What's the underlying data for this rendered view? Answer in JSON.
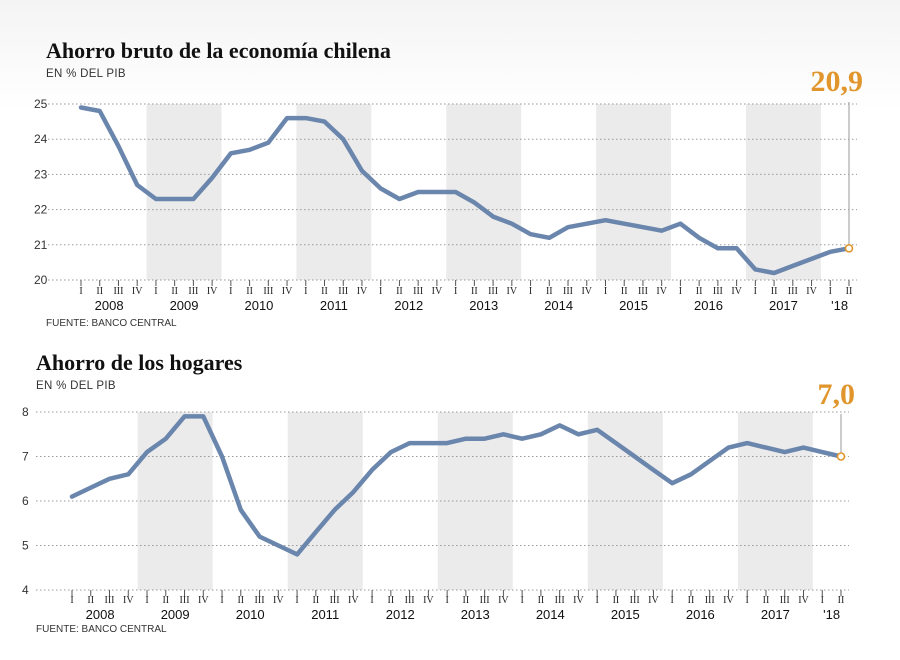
{
  "colors": {
    "line": "#6b86ad",
    "band": "#ebebeb",
    "grid": "#9a9a9a",
    "accent": "#e0962c"
  },
  "chart_data": [
    {
      "type": "line",
      "title": "Ahorro bruto de la economía chilena",
      "subtitle": "EN % DEL PIB",
      "source": "FUENTE: BANCO CENTRAL",
      "highlight": "20,9",
      "ylim": [
        20,
        25
      ],
      "yticks": [
        "20",
        "21",
        "22",
        "23",
        "24",
        "25"
      ],
      "grid": true,
      "quarters": [
        "I",
        "II",
        "III",
        "IV",
        "I",
        "II",
        "III",
        "IV",
        "I",
        "II",
        "III",
        "IV",
        "I",
        "II",
        "III",
        "IV",
        "I",
        "II",
        "III",
        "IV",
        "I",
        "II",
        "III",
        "IV",
        "I",
        "II",
        "III",
        "IV",
        "I",
        "II",
        "III",
        "IV",
        "I",
        "II",
        "III",
        "IV",
        "I",
        "II",
        "III",
        "IV",
        "I",
        "II"
      ],
      "years": [
        "2008",
        "2009",
        "2010",
        "2011",
        "2012",
        "2013",
        "2014",
        "2015",
        "2016",
        "2017",
        "'18"
      ],
      "values": [
        24.9,
        24.8,
        23.8,
        22.7,
        22.3,
        22.3,
        22.3,
        22.9,
        23.6,
        23.7,
        23.9,
        24.6,
        24.6,
        24.5,
        24.0,
        23.1,
        22.6,
        22.3,
        22.5,
        22.5,
        22.5,
        22.2,
        21.8,
        21.6,
        21.3,
        21.2,
        21.5,
        21.6,
        21.7,
        21.6,
        21.5,
        21.4,
        21.6,
        21.2,
        20.9,
        20.9,
        20.3,
        20.2,
        20.4,
        20.6,
        20.8,
        20.9
      ]
    },
    {
      "type": "line",
      "title": "Ahorro de los hogares",
      "subtitle": "EN % DEL PIB",
      "source": "FUENTE: BANCO CENTRAL",
      "highlight": "7,0",
      "ylim": [
        4,
        8
      ],
      "yticks": [
        "4",
        "5",
        "6",
        "7",
        "8"
      ],
      "grid": true,
      "quarters": [
        "I",
        "II",
        "III",
        "IV",
        "I",
        "II",
        "III",
        "IV",
        "I",
        "II",
        "III",
        "IV",
        "I",
        "II",
        "III",
        "IV",
        "I",
        "II",
        "III",
        "IV",
        "I",
        "II",
        "III",
        "IV",
        "I",
        "II",
        "III",
        "IV",
        "I",
        "II",
        "III",
        "IV",
        "I",
        "II",
        "III",
        "IV",
        "I",
        "II",
        "III",
        "IV",
        "I",
        "II"
      ],
      "years": [
        "2008",
        "2009",
        "2010",
        "2011",
        "2012",
        "2013",
        "2014",
        "2015",
        "2016",
        "2017",
        "'18"
      ],
      "values": [
        6.1,
        6.3,
        6.5,
        6.6,
        7.1,
        7.4,
        7.9,
        7.9,
        7.0,
        5.8,
        5.2,
        5.0,
        4.8,
        5.3,
        5.8,
        6.2,
        6.7,
        7.1,
        7.3,
        7.3,
        7.3,
        7.4,
        7.4,
        7.5,
        7.4,
        7.5,
        7.7,
        7.5,
        7.6,
        7.3,
        7.0,
        6.7,
        6.4,
        6.6,
        6.9,
        7.2,
        7.3,
        7.2,
        7.1,
        7.2,
        7.1,
        7.0
      ]
    }
  ]
}
